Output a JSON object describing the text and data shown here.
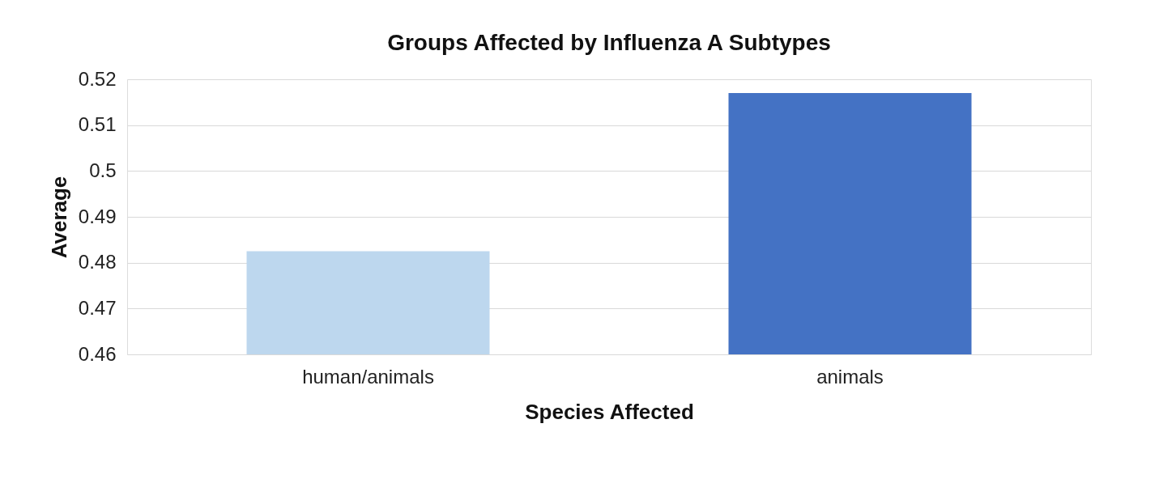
{
  "chart_data": {
    "type": "bar",
    "title": "Groups Affected by Influenza A Subtypes",
    "xlabel": "Species Affected",
    "ylabel": "Average",
    "categories": [
      "human/animals",
      "animals"
    ],
    "values": [
      0.4825,
      0.517
    ],
    "colors": [
      "#bdd7ee",
      "#4472c4"
    ],
    "ylim": [
      0.46,
      0.52
    ],
    "yticks": [
      0.46,
      0.47,
      0.48,
      0.49,
      0.5,
      0.51,
      0.52
    ],
    "grid": "y",
    "legend": false
  }
}
